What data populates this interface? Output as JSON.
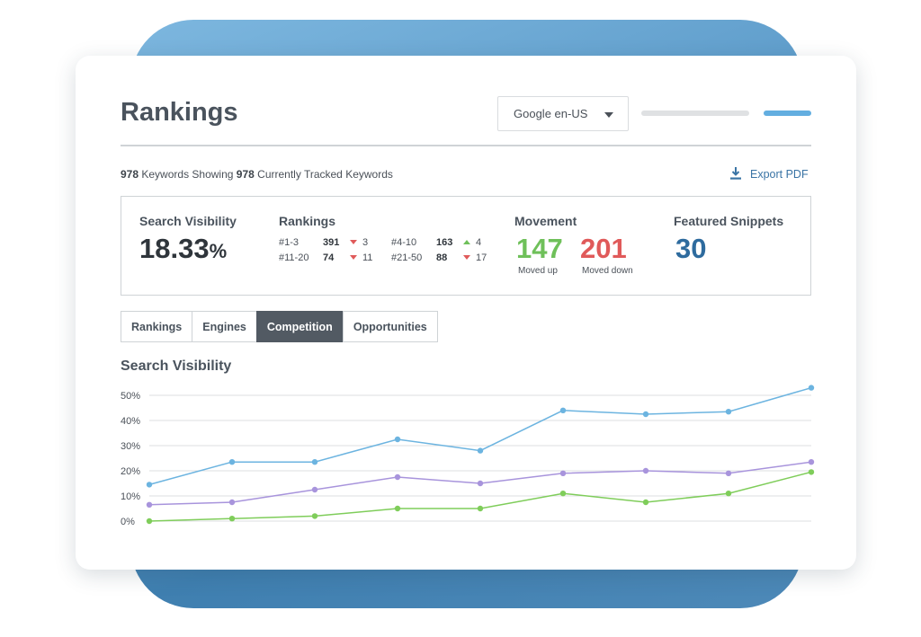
{
  "header": {
    "title": "Rankings",
    "engine_select": "Google en-US"
  },
  "keywords_line": {
    "count1": "978",
    "text1": "Keywords Showing",
    "count2": "978",
    "text2": "Currently Tracked Keywords"
  },
  "export": {
    "label": "Export PDF",
    "icon": "download-icon"
  },
  "stats": {
    "search_visibility": {
      "label": "Search Visibility",
      "value": "18.33",
      "unit": "%"
    },
    "rankings": {
      "label": "Rankings",
      "rows": [
        {
          "range": "#1-3",
          "count": "391",
          "dir": "down",
          "change": "3"
        },
        {
          "range": "#4-10",
          "count": "163",
          "dir": "up",
          "change": "4"
        },
        {
          "range": "#11-20",
          "count": "74",
          "dir": "down",
          "change": "11"
        },
        {
          "range": "#21-50",
          "count": "88",
          "dir": "down",
          "change": "17"
        }
      ]
    },
    "movement": {
      "label": "Movement",
      "up_value": "147",
      "up_label": "Moved up",
      "down_value": "201",
      "down_label": "Moved down"
    },
    "featured_snippets": {
      "label": "Featured Snippets",
      "value": "30"
    }
  },
  "colors": {
    "up": "#6fc05a",
    "down": "#e05a5a",
    "snippets": "#2e6b9e",
    "accent_blue": "#63aee0"
  },
  "tabs": [
    {
      "label": "Rankings",
      "active": false
    },
    {
      "label": "Engines",
      "active": false
    },
    {
      "label": "Competition",
      "active": true
    },
    {
      "label": "Opportunities",
      "active": false
    }
  ],
  "chart_data": {
    "type": "line",
    "title": "Search Visibility",
    "y_ticks": [
      "50%",
      "40%",
      "30%",
      "20%",
      "10%",
      "0%"
    ],
    "ylim": [
      0,
      50
    ],
    "grid": true,
    "x_count": 9,
    "series": [
      {
        "color": "#6cb4e0",
        "values": [
          14.5,
          23.5,
          23.5,
          32.5,
          28,
          44,
          42.5,
          43.5,
          53
        ]
      },
      {
        "color": "#a894dc",
        "values": [
          6.5,
          7.5,
          12.5,
          17.5,
          15,
          19,
          20,
          19,
          23.5
        ]
      },
      {
        "color": "#7fcd5a",
        "values": [
          0,
          1,
          2,
          5,
          5,
          11,
          7.5,
          11,
          19.5
        ]
      }
    ]
  }
}
